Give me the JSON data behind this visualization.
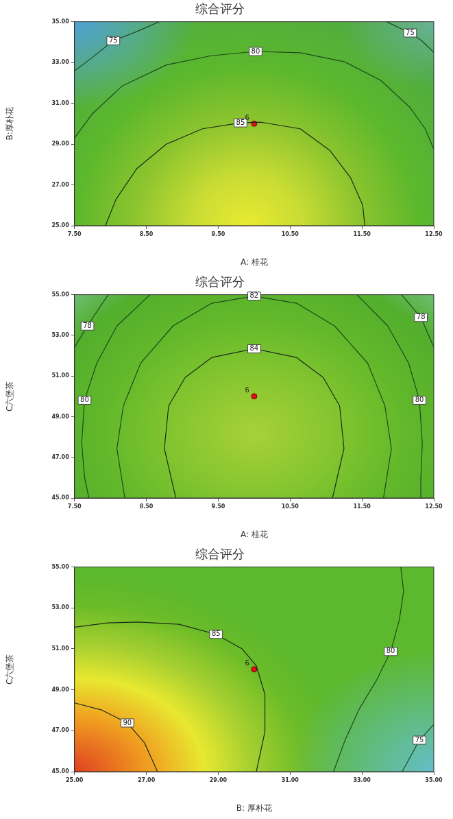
{
  "chart_data": [
    {
      "type": "line",
      "title": "综合评分",
      "xlabel": "A: 桂花",
      "ylabel": "B:厚朴花",
      "grid": false,
      "xlim": [
        7.5,
        12.5
      ],
      "xticks": [
        {
          "value": 7.5,
          "label": "7.50"
        },
        {
          "value": 8.5,
          "label": "8.50"
        },
        {
          "value": 9.5,
          "label": "9.50"
        },
        {
          "value": 10.5,
          "label": "10.50"
        },
        {
          "value": 11.5,
          "label": "11.50"
        },
        {
          "value": 12.5,
          "label": "12.50"
        }
      ],
      "ylim": [
        25,
        35
      ],
      "yticks": [
        {
          "value": 25,
          "label": "25.00"
        },
        {
          "value": 27,
          "label": "27.00"
        },
        {
          "value": 29,
          "label": "29.00"
        },
        {
          "value": 31,
          "label": "31.00"
        },
        {
          "value": 33,
          "label": "33.00"
        },
        {
          "value": 35,
          "label": "35.00"
        }
      ],
      "series": [
        {
          "name": "75",
          "color": "#1d4a1d",
          "x": [
            7.5,
            7.75,
            8.04,
            8.37,
            8.68
          ],
          "values": [
            32.58,
            33.25,
            34.07,
            34.52,
            35
          ]
        },
        {
          "name": "75",
          "color": "#1d4a1d",
          "x": [
            11.84,
            12.17,
            12.33,
            12.5
          ],
          "values": [
            35,
            34.45,
            34.07,
            33.5
          ]
        },
        {
          "name": "80",
          "color": "#1d4a1d",
          "x": [
            7.5,
            7.75,
            8.16,
            8.78,
            9.4,
            10.02,
            10.64,
            11.26,
            11.76,
            12.17,
            12.38,
            12.5
          ],
          "values": [
            29.3,
            30.49,
            31.84,
            32.88,
            33.33,
            33.54,
            33.48,
            33.03,
            32.13,
            30.79,
            29.75,
            28.75
          ]
        },
        {
          "name": "85",
          "color": "#1a2a1a",
          "x": [
            7.93,
            8.08,
            8.37,
            8.78,
            9.28,
            9.81,
            10.1,
            10.64,
            11.05,
            11.34,
            11.51,
            11.54
          ],
          "values": [
            25,
            26.31,
            27.81,
            29.0,
            29.75,
            30.04,
            30.07,
            29.75,
            28.7,
            27.36,
            26.01,
            25
          ]
        },
        {
          "name": "6",
          "type": "scatter",
          "color": "#e0101c",
          "x": [
            10
          ],
          "values": [
            30
          ]
        }
      ]
    },
    {
      "type": "line",
      "title": "综合评分",
      "xlabel": "A: 桂花",
      "ylabel": "C六堡茶",
      "grid": false,
      "xlim": [
        7.5,
        12.5
      ],
      "xticks": [
        {
          "value": 7.5,
          "label": "7.50"
        },
        {
          "value": 8.5,
          "label": "8.50"
        },
        {
          "value": 9.5,
          "label": "9.50"
        },
        {
          "value": 10.5,
          "label": "10.50"
        },
        {
          "value": 11.5,
          "label": "11.50"
        },
        {
          "value": 12.5,
          "label": "12.50"
        }
      ],
      "ylim": [
        45,
        55
      ],
      "yticks": [
        {
          "value": 45,
          "label": "45.00"
        },
        {
          "value": 47,
          "label": "47.00"
        },
        {
          "value": 49,
          "label": "49.00"
        },
        {
          "value": 51,
          "label": "51.00"
        },
        {
          "value": 53,
          "label": "53.00"
        },
        {
          "value": 55,
          "label": "55.00"
        }
      ],
      "series": [
        {
          "name": "78",
          "color": "#1d4a1d",
          "x": [
            7.5,
            7.68,
            7.77,
            7.97
          ],
          "values": [
            52.41,
            53.46,
            53.95,
            55
          ]
        },
        {
          "name": "78",
          "color": "#1d4a1d",
          "x": [
            12.05,
            12.32,
            12.5
          ],
          "values": [
            55,
            53.88,
            52.41
          ]
        },
        {
          "name": "80",
          "color": "#1d4a1d",
          "x": [
            8.55,
            8.09,
            7.81,
            7.64,
            7.6,
            7.64,
            7.7
          ],
          "values": [
            55,
            53.46,
            51.63,
            49.81,
            47.71,
            46.02,
            45
          ]
        },
        {
          "name": "80",
          "color": "#1d4a1d",
          "x": [
            11.43,
            11.86,
            12.15,
            12.3,
            12.34,
            12.32,
            12.32
          ],
          "values": [
            55,
            53.46,
            51.63,
            49.81,
            47.71,
            46.02,
            45
          ]
        },
        {
          "name": "82",
          "color": "#1d4a1d",
          "x": [
            8.2,
            8.09,
            8.18,
            8.42,
            8.87,
            9.41,
            10.0,
            10.59,
            11.12,
            11.58,
            11.82,
            11.91,
            11.8
          ],
          "values": [
            45,
            47.43,
            49.53,
            51.63,
            53.46,
            54.58,
            54.93,
            54.58,
            53.46,
            51.63,
            49.53,
            47.43,
            45
          ]
        },
        {
          "name": "84",
          "color": "#1a2a1a",
          "x": [
            8.91,
            8.75,
            8.81,
            9.04,
            9.41,
            10.0,
            10.59,
            10.96,
            11.19,
            11.25,
            11.09
          ],
          "values": [
            45,
            47.43,
            49.53,
            50.93,
            51.91,
            52.34,
            51.91,
            50.93,
            49.53,
            47.43,
            45
          ]
        },
        {
          "name": "6",
          "type": "scatter",
          "color": "#e0101c",
          "x": [
            10
          ],
          "values": [
            50
          ]
        }
      ]
    },
    {
      "type": "line",
      "title": "综合评分",
      "xlabel": "B: 厚朴花",
      "ylabel": "C六堡茶",
      "grid": false,
      "xlim": [
        25,
        35
      ],
      "xticks": [
        {
          "value": 25,
          "label": "25.00"
        },
        {
          "value": 27,
          "label": "27.00"
        },
        {
          "value": 29,
          "label": "29.00"
        },
        {
          "value": 31,
          "label": "31.00"
        },
        {
          "value": 33,
          "label": "33.00"
        },
        {
          "value": 35,
          "label": "35.00"
        }
      ],
      "ylim": [
        45,
        55
      ],
      "yticks": [
        {
          "value": 45,
          "label": "45.00"
        },
        {
          "value": 47,
          "label": "47.00"
        },
        {
          "value": 49,
          "label": "49.00"
        },
        {
          "value": 51,
          "label": "51.00"
        },
        {
          "value": 53,
          "label": "53.00"
        },
        {
          "value": 55,
          "label": "55.00"
        }
      ],
      "series": [
        {
          "name": "85",
          "color": "#1a2a1a",
          "x": [
            25,
            25.92,
            26.79,
            27.91,
            28.94,
            29.66,
            30.06,
            30.3,
            30.3,
            30.06
          ],
          "values": [
            52.06,
            52.27,
            52.31,
            52.2,
            51.71,
            51.01,
            50.17,
            48.78,
            46.96,
            45
          ]
        },
        {
          "name": "90",
          "color": "#1a2a1a",
          "x": [
            25,
            25.76,
            26.47,
            26.95,
            27.31
          ],
          "values": [
            48.36,
            48.01,
            47.38,
            46.4,
            45
          ]
        },
        {
          "name": "80",
          "color": "#1d4a1d",
          "x": [
            34.08,
            34.16,
            34.04,
            33.8,
            33.41,
            32.93,
            32.53,
            32.21
          ],
          "values": [
            55,
            53.81,
            52.41,
            50.87,
            49.48,
            48.08,
            46.54,
            45
          ]
        },
        {
          "name": "75",
          "color": "#1d4a1d",
          "x": [
            34.12,
            34.6,
            35
          ],
          "values": [
            45,
            46.54,
            47.31
          ]
        },
        {
          "name": "6",
          "type": "scatter",
          "color": "#e0101c",
          "x": [
            30
          ],
          "values": [
            50
          ]
        }
      ]
    }
  ]
}
